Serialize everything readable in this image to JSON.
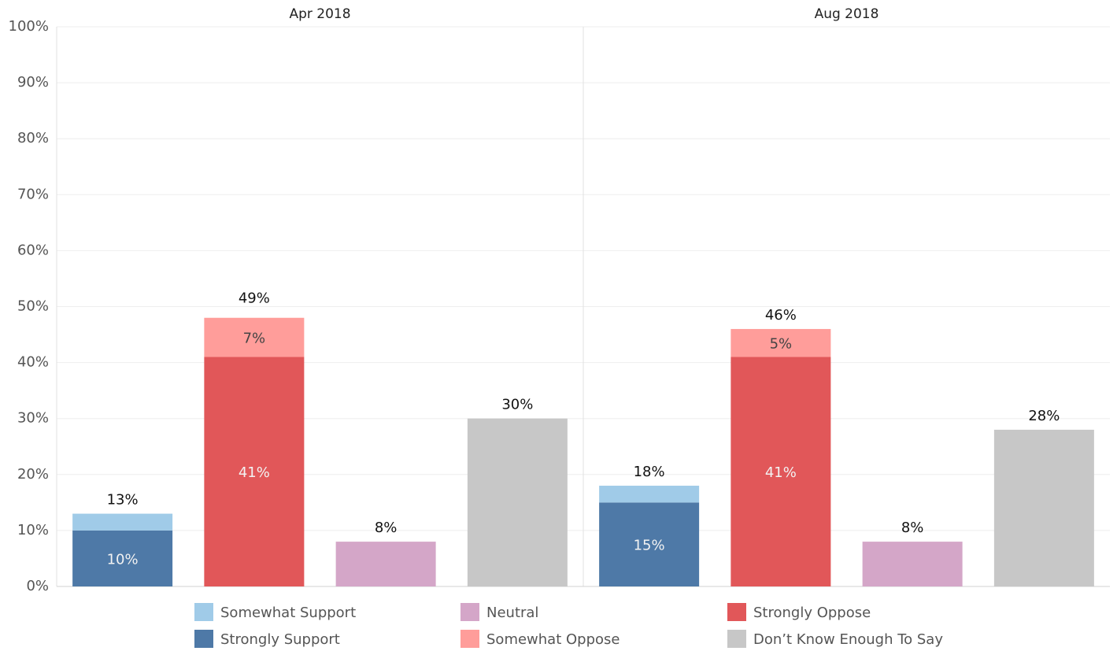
{
  "chart_data": {
    "type": "bar",
    "stacked": true,
    "panels": [
      "Apr 2018",
      "Aug 2018"
    ],
    "ylim": [
      0,
      100
    ],
    "yticks": [
      {
        "value": 0,
        "label": "0%"
      },
      {
        "value": 10,
        "label": "10%"
      },
      {
        "value": 20,
        "label": "20%"
      },
      {
        "value": 30,
        "label": "30%"
      },
      {
        "value": 40,
        "label": "40%"
      },
      {
        "value": 50,
        "label": "50%"
      },
      {
        "value": 60,
        "label": "60%"
      },
      {
        "value": 70,
        "label": "70%"
      },
      {
        "value": 80,
        "label": "80%"
      },
      {
        "value": 90,
        "label": "90%"
      },
      {
        "value": 100,
        "label": "100%"
      }
    ],
    "grid": true,
    "legend": "bottom",
    "series": [
      {
        "name": "Strongly Support",
        "color": "#4e79a7",
        "values": [
          10,
          null,
          null,
          null,
          15,
          null,
          null,
          null
        ],
        "value_labels": [
          "10%",
          null,
          null,
          null,
          "15%",
          null,
          null,
          null
        ]
      },
      {
        "name": "Somewhat Support",
        "color": "#a0cbe8",
        "values": [
          3,
          null,
          null,
          null,
          3,
          null,
          null,
          null
        ]
      },
      {
        "name": "Neutral",
        "color": "#d4a6c8",
        "values": [
          null,
          null,
          8,
          null,
          null,
          null,
          8,
          null
        ]
      },
      {
        "name": "Strongly Oppose",
        "color": "#e15759",
        "values": [
          null,
          41,
          null,
          null,
          null,
          41,
          null,
          null
        ],
        "value_labels": [
          null,
          "41%",
          null,
          null,
          null,
          "41%",
          null,
          null
        ]
      },
      {
        "name": "Somewhat Oppose",
        "color": "#ff9d9a",
        "values": [
          null,
          7,
          null,
          null,
          null,
          5,
          null,
          null
        ],
        "value_labels": [
          null,
          "7%",
          null,
          null,
          null,
          "5%",
          null,
          null
        ]
      },
      {
        "name": "Don’t Know Enough To Say",
        "color": "#c7c7c7",
        "values": [
          null,
          null,
          null,
          30,
          null,
          null,
          null,
          28
        ]
      }
    ],
    "totals": [
      13,
      49,
      8,
      30,
      18,
      46,
      8,
      28
    ],
    "total_labels": [
      "13%",
      "49%",
      "8%",
      "30%",
      "18%",
      "46%",
      "8%",
      "28%"
    ]
  }
}
